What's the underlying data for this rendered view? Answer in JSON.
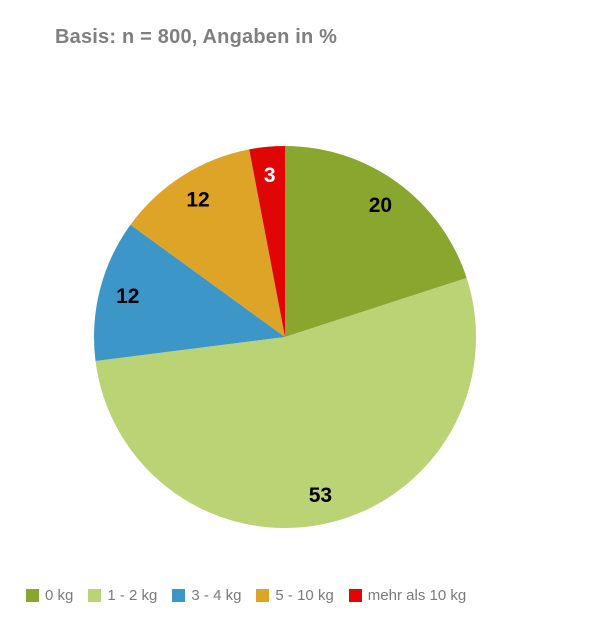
{
  "chart_data": {
    "type": "pie",
    "title": "Basis: n = 800, Angaben in %",
    "title_color": "#7F7F7F",
    "values_unit": "%",
    "direction": "clockwise",
    "start_angle_deg": 0,
    "legend_position": "bottom",
    "legend_text_color": "#7A7A7A",
    "background_color": "#FFFFFF",
    "slices": [
      {
        "label": "0 kg",
        "value": 20,
        "color": "#89A62F",
        "value_label": "20",
        "value_label_color": "#000000"
      },
      {
        "label": "1 - 2 kg",
        "value": 53,
        "color": "#BAD375",
        "value_label": "53",
        "value_label_color": "#000000"
      },
      {
        "label": "3 - 4 kg",
        "value": 12,
        "color": "#3C96C8",
        "value_label": "12",
        "value_label_color": "#000000"
      },
      {
        "label": "5 - 10 kg",
        "value": 12,
        "color": "#DEA428",
        "value_label": "12",
        "value_label_color": "#000000"
      },
      {
        "label": "mehr als 10 kg",
        "value": 3,
        "color": "#E00605",
        "value_label": "3",
        "value_label_color": "#FFFFFF"
      }
    ]
  }
}
